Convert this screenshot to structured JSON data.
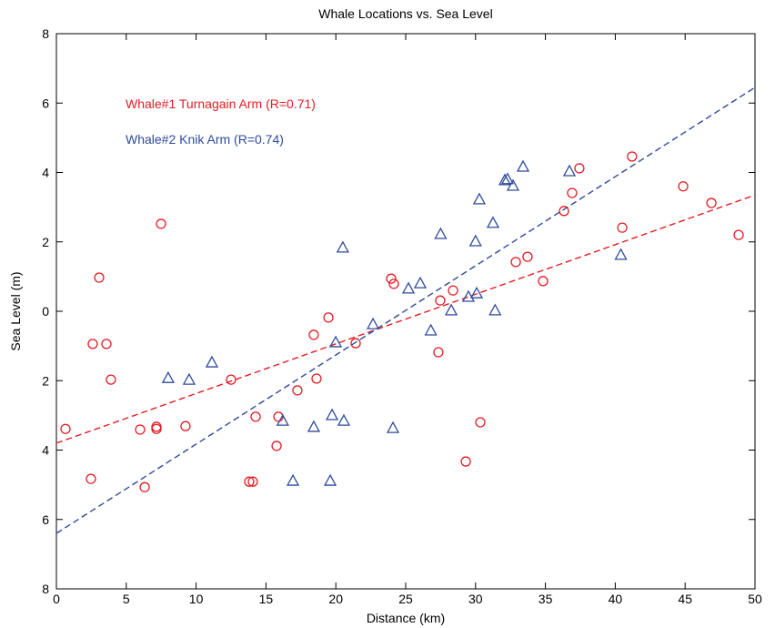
{
  "chart_data": {
    "type": "scatter",
    "title": "Whale Locations vs. Sea Level",
    "x_label": "Distance (km)",
    "y_label": "Sea Level (m)",
    "xlim": [
      0,
      50
    ],
    "xticks": [
      0,
      5,
      10,
      15,
      20,
      25,
      30,
      35,
      40,
      45,
      50
    ],
    "ylim": [
      -8,
      8
    ],
    "yticks": [
      {
        "value": -8,
        "label": "8"
      },
      {
        "value": -6,
        "label": "6"
      },
      {
        "value": -4,
        "label": "4"
      },
      {
        "value": -2,
        "label": "2"
      },
      0,
      2,
      4,
      6,
      8
    ],
    "grid": false,
    "series": [
      {
        "name": "Whale#1 Turnagain Arm (R=0.71)",
        "color": "#e41c23",
        "marker": "circle",
        "x": [
          0.65,
          3.06,
          2.6,
          3.58,
          2.47,
          3.9,
          7.49,
          5.99,
          7.16,
          7.16,
          6.32,
          9.24,
          12.5,
          13.8,
          14.06,
          14.26,
          15.89,
          15.76,
          17.25,
          18.42,
          18.62,
          19.47,
          21.42,
          23.96,
          24.15,
          27.34,
          27.47,
          28.39,
          29.3,
          30.34,
          32.88,
          33.72,
          34.83,
          36.33,
          36.91,
          37.43,
          40.5,
          41.2,
          44.86,
          46.88,
          48.83
        ],
        "values": [
          -3.39,
          0.97,
          -0.94,
          -0.94,
          -4.83,
          -1.97,
          2.52,
          -3.41,
          -3.39,
          -3.33,
          -5.07,
          -3.31,
          -1.97,
          -4.91,
          -4.91,
          -3.04,
          -3.04,
          -3.88,
          -2.28,
          -0.68,
          -1.94,
          -0.18,
          -0.92,
          0.94,
          0.79,
          -1.18,
          0.31,
          0.6,
          -4.33,
          -3.2,
          1.42,
          1.57,
          0.87,
          2.89,
          3.41,
          4.12,
          2.41,
          4.46,
          3.6,
          3.12,
          2.2
        ],
        "fit": {
          "x": [
            0,
            50
          ],
          "values": [
            -3.8,
            3.35
          ]
        }
      },
      {
        "name": "Whale#2 Knik Arm (R=0.74)",
        "color": "#2e4a9b",
        "marker": "triangle",
        "x": [
          8.0,
          9.5,
          11.13,
          16.2,
          16.93,
          18.42,
          19.6,
          19.73,
          19.99,
          20.57,
          20.5,
          22.66,
          24.09,
          25.2,
          26.04,
          26.8,
          27.5,
          28.26,
          29.49,
          30.0,
          30.08,
          30.27,
          31.4,
          31.25,
          32.1,
          32.29,
          32.68,
          33.4,
          36.72,
          40.4
        ],
        "values": [
          -1.92,
          -1.97,
          -1.47,
          -3.15,
          -4.88,
          -3.33,
          -4.88,
          -2.99,
          -0.89,
          -3.15,
          1.84,
          -0.37,
          -3.36,
          0.66,
          0.81,
          -0.55,
          2.23,
          0.03,
          0.42,
          2.02,
          0.52,
          3.23,
          0.03,
          2.55,
          3.78,
          3.81,
          3.62,
          4.17,
          4.04,
          1.63
        ],
        "fit": {
          "x": [
            0,
            50
          ],
          "values": [
            -6.4,
            6.45
          ]
        }
      }
    ]
  }
}
